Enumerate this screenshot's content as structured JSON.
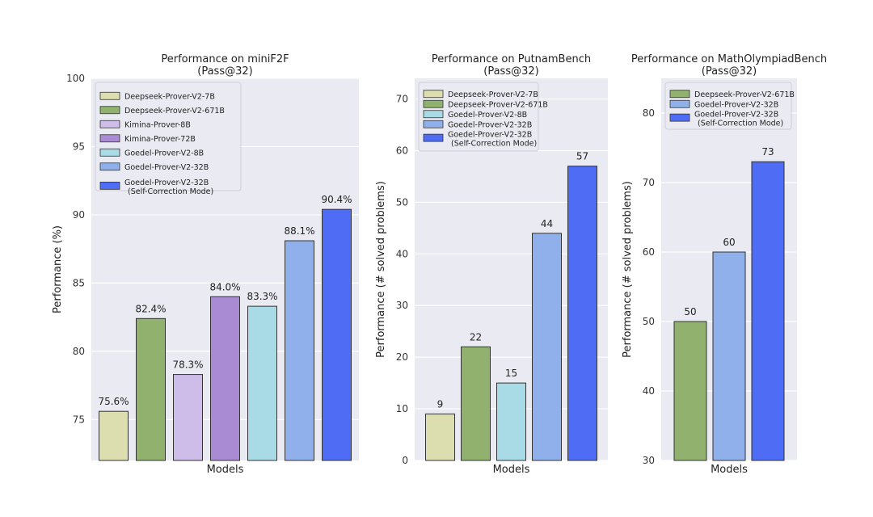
{
  "chart_data": [
    {
      "type": "bar",
      "title": "Performance on miniF2F",
      "subtitle": "(Pass@32)",
      "xlabel": "Models",
      "ylabel": "Performance (%)",
      "ylim": [
        72,
        100
      ],
      "yticks": [
        75,
        80,
        85,
        90,
        95,
        100
      ],
      "grid": true,
      "legend_position": "top-left",
      "series": [
        {
          "name": "Deepseek-Prover-V2-7B",
          "value": 75.6,
          "label": "75.6%",
          "color": "#dcdeb0"
        },
        {
          "name": "Deepseek-Prover-V2-671B",
          "value": 82.4,
          "label": "82.4%",
          "color": "#90b26e"
        },
        {
          "name": "Kimina-Prover-8B",
          "value": 78.3,
          "label": "78.3%",
          "color": "#cfbde9"
        },
        {
          "name": "Kimina-Prover-72B",
          "value": 84.0,
          "label": "84.0%",
          "color": "#a98bd3"
        },
        {
          "name": "Goedel-Prover-V2-8B",
          "value": 83.3,
          "label": "83.3%",
          "color": "#a8dbe6"
        },
        {
          "name": "Goedel-Prover-V2-32B",
          "value": 88.1,
          "label": "88.1%",
          "color": "#8fb0ea"
        },
        {
          "name": "Goedel-Prover-V2-32B\n(Self-Correction Mode)",
          "value": 90.4,
          "label": "90.4%",
          "color": "#4f6cf5"
        }
      ]
    },
    {
      "type": "bar",
      "title": "Performance on PutnamBench",
      "subtitle": "(Pass@32)",
      "xlabel": "Models",
      "ylabel": "Performance (# solved problems)",
      "ylim": [
        0,
        74
      ],
      "yticks": [
        0,
        10,
        20,
        30,
        40,
        50,
        60,
        70
      ],
      "grid": true,
      "legend_position": "top-left",
      "series": [
        {
          "name": "Deepseek-Prover-V2-7B",
          "value": 9,
          "label": "9",
          "color": "#dcdeb0"
        },
        {
          "name": "Deepseek-Prover-V2-671B",
          "value": 22,
          "label": "22",
          "color": "#90b26e"
        },
        {
          "name": "Goedel-Prover-V2-8B",
          "value": 15,
          "label": "15",
          "color": "#a8dbe6"
        },
        {
          "name": "Goedel-Prover-V2-32B",
          "value": 44,
          "label": "44",
          "color": "#8fb0ea"
        },
        {
          "name": "Goedel-Prover-V2-32B\n(Self-Correction Mode)",
          "value": 57,
          "label": "57",
          "color": "#4f6cf5"
        }
      ]
    },
    {
      "type": "bar",
      "title": "Performance on MathOlympiadBench",
      "subtitle": "(Pass@32)",
      "xlabel": "Models",
      "ylabel": "Performance (# solved problems)",
      "ylim": [
        30,
        85
      ],
      "yticks": [
        30,
        40,
        50,
        60,
        70,
        80
      ],
      "grid": true,
      "legend_position": "top-left",
      "series": [
        {
          "name": "Deepseek-Prover-V2-671B",
          "value": 50,
          "label": "50",
          "color": "#90b26e"
        },
        {
          "name": "Goedel-Prover-V2-32B",
          "value": 60,
          "label": "60",
          "color": "#8fb0ea"
        },
        {
          "name": "Goedel-Prover-V2-32B\n(Self-Correction Mode)",
          "value": 73,
          "label": "73",
          "color": "#4f6cf5"
        }
      ]
    }
  ]
}
